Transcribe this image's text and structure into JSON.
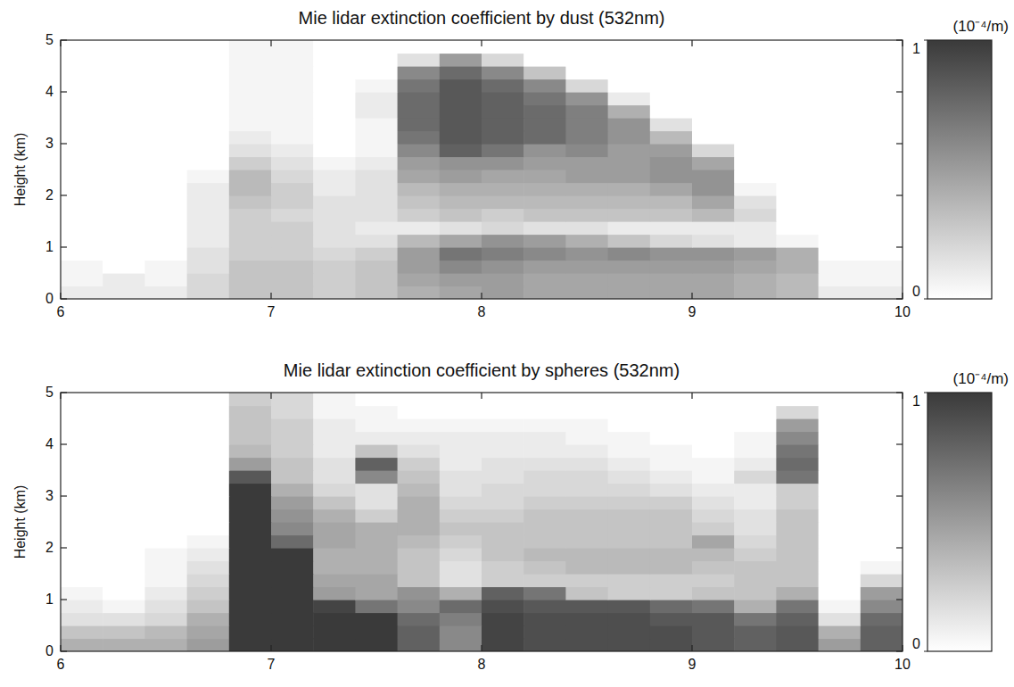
{
  "chart_data": [
    {
      "type": "heatmap",
      "title": "Mie lidar extinction coefficient by dust (532nm)",
      "y_label": "Height (km)",
      "x": [
        6.1,
        6.3,
        6.5,
        6.7,
        6.9,
        7.1,
        7.3,
        7.5,
        7.7,
        7.9,
        8.1,
        8.3,
        8.5,
        8.7,
        8.9,
        9.1,
        9.3,
        9.5,
        9.7,
        9.9
      ],
      "y": [
        0.125,
        0.375,
        0.625,
        0.875,
        1.125,
        1.375,
        1.625,
        1.875,
        2.125,
        2.375,
        2.625,
        2.875,
        3.125,
        3.375,
        3.625,
        3.875,
        4.125,
        4.375,
        4.625,
        4.875
      ],
      "values": [
        [
          0.1,
          0.1,
          0.1,
          0.2,
          0.3,
          0.3,
          0.25,
          0.3,
          0.4,
          0.45,
          0.5,
          0.45,
          0.45,
          0.45,
          0.45,
          0.45,
          0.4,
          0.35,
          0.1,
          0.1
        ],
        [
          0.05,
          0.1,
          0.05,
          0.2,
          0.3,
          0.3,
          0.25,
          0.3,
          0.45,
          0.5,
          0.5,
          0.45,
          0.45,
          0.45,
          0.45,
          0.45,
          0.4,
          0.35,
          0.05,
          0.05
        ],
        [
          0.05,
          0,
          0.05,
          0.15,
          0.3,
          0.3,
          0.25,
          0.3,
          0.5,
          0.6,
          0.55,
          0.5,
          0.5,
          0.5,
          0.5,
          0.5,
          0.45,
          0.4,
          0.05,
          0.05
        ],
        [
          0,
          0,
          0,
          0.15,
          0.25,
          0.25,
          0.2,
          0.25,
          0.5,
          0.7,
          0.65,
          0.6,
          0.55,
          0.6,
          0.55,
          0.55,
          0.5,
          0.4,
          0,
          0
        ],
        [
          0,
          0,
          0,
          0.1,
          0.25,
          0.25,
          0.15,
          0.15,
          0.35,
          0.45,
          0.55,
          0.5,
          0.4,
          0.3,
          0.2,
          0.15,
          0.1,
          0.05,
          0,
          0
        ],
        [
          0,
          0,
          0,
          0.1,
          0.25,
          0.25,
          0.15,
          0.1,
          0.1,
          0.15,
          0.2,
          0.15,
          0.15,
          0.1,
          0.1,
          0.1,
          0.1,
          0,
          0,
          0
        ],
        [
          0,
          0,
          0,
          0.1,
          0.25,
          0.2,
          0.15,
          0.15,
          0.25,
          0.3,
          0.25,
          0.3,
          0.3,
          0.3,
          0.3,
          0.35,
          0.2,
          0,
          0,
          0
        ],
        [
          0,
          0,
          0,
          0.1,
          0.3,
          0.25,
          0.15,
          0.15,
          0.3,
          0.35,
          0.35,
          0.35,
          0.35,
          0.35,
          0.35,
          0.45,
          0.15,
          0,
          0,
          0
        ],
        [
          0,
          0,
          0,
          0.1,
          0.35,
          0.25,
          0.1,
          0.15,
          0.35,
          0.4,
          0.4,
          0.4,
          0.4,
          0.4,
          0.45,
          0.55,
          0.05,
          0,
          0,
          0
        ],
        [
          0,
          0,
          0,
          0.05,
          0.35,
          0.2,
          0.1,
          0.15,
          0.45,
          0.5,
          0.45,
          0.45,
          0.5,
          0.5,
          0.55,
          0.55,
          0,
          0,
          0,
          0
        ],
        [
          0,
          0,
          0,
          0,
          0.25,
          0.15,
          0.05,
          0.1,
          0.5,
          0.55,
          0.55,
          0.5,
          0.5,
          0.5,
          0.55,
          0.45,
          0,
          0,
          0,
          0
        ],
        [
          0,
          0,
          0,
          0,
          0.15,
          0.1,
          0,
          0.05,
          0.6,
          0.8,
          0.7,
          0.55,
          0.6,
          0.5,
          0.5,
          0.2,
          0,
          0,
          0,
          0
        ],
        [
          0,
          0,
          0,
          0,
          0.1,
          0.05,
          0,
          0.05,
          0.7,
          0.85,
          0.8,
          0.75,
          0.65,
          0.55,
          0.35,
          0,
          0,
          0,
          0,
          0
        ],
        [
          0,
          0,
          0,
          0,
          0.05,
          0.05,
          0,
          0.05,
          0.75,
          0.85,
          0.8,
          0.75,
          0.65,
          0.55,
          0.15,
          0,
          0,
          0,
          0,
          0
        ],
        [
          0,
          0,
          0,
          0,
          0.05,
          0.05,
          0,
          0.1,
          0.75,
          0.85,
          0.8,
          0.75,
          0.65,
          0.4,
          0,
          0,
          0,
          0,
          0,
          0
        ],
        [
          0,
          0,
          0,
          0,
          0.05,
          0.05,
          0,
          0.1,
          0.75,
          0.85,
          0.8,
          0.7,
          0.55,
          0.1,
          0,
          0,
          0,
          0,
          0,
          0
        ],
        [
          0,
          0,
          0,
          0,
          0.05,
          0.05,
          0,
          0.05,
          0.7,
          0.85,
          0.75,
          0.6,
          0.2,
          0,
          0,
          0,
          0,
          0,
          0,
          0
        ],
        [
          0,
          0,
          0,
          0,
          0.05,
          0.05,
          0,
          0,
          0.6,
          0.75,
          0.6,
          0.3,
          0,
          0,
          0,
          0,
          0,
          0,
          0,
          0
        ],
        [
          0,
          0,
          0,
          0,
          0.05,
          0.05,
          0,
          0,
          0.15,
          0.5,
          0.2,
          0,
          0,
          0,
          0,
          0,
          0,
          0,
          0,
          0
        ],
        [
          0,
          0,
          0,
          0,
          0.05,
          0.05,
          0,
          0,
          0,
          0,
          0,
          0,
          0,
          0,
          0,
          0,
          0,
          0,
          0,
          0
        ]
      ],
      "xlim": [
        6,
        10
      ],
      "xticks": [
        6,
        7,
        8,
        9,
        10
      ],
      "ylim": [
        0,
        5
      ],
      "yticks": [
        0,
        1,
        2,
        3,
        4,
        5
      ],
      "colors": [
        "#ffffff",
        "#3a3a3a"
      ],
      "color_range": [
        0,
        1
      ],
      "color_ticks": [
        0,
        1
      ],
      "color_label": "(10⁻⁴/m)"
    },
    {
      "type": "heatmap",
      "title": "Mie lidar extinction coefficient by spheres (532nm)",
      "y_label": "Height (km)",
      "x": [
        6.1,
        6.3,
        6.5,
        6.7,
        6.9,
        7.1,
        7.3,
        7.5,
        7.7,
        7.9,
        8.1,
        8.3,
        8.5,
        8.7,
        8.9,
        9.1,
        9.3,
        9.5,
        9.7,
        9.9
      ],
      "y": [
        0.125,
        0.375,
        0.625,
        0.875,
        1.125,
        1.375,
        1.625,
        1.875,
        2.125,
        2.375,
        2.625,
        2.875,
        3.125,
        3.375,
        3.625,
        3.875,
        4.125,
        4.375,
        4.625,
        4.875
      ],
      "values": [
        [
          0.4,
          0.4,
          0.4,
          0.5,
          1,
          1,
          1,
          1,
          0.8,
          0.6,
          0.95,
          0.9,
          0.9,
          0.9,
          0.9,
          0.85,
          0.8,
          0.85,
          0.5,
          0.8
        ],
        [
          0.3,
          0.3,
          0.35,
          0.45,
          1,
          1,
          1,
          1,
          0.8,
          0.6,
          0.95,
          0.9,
          0.9,
          0.9,
          0.9,
          0.85,
          0.8,
          0.85,
          0.4,
          0.8
        ],
        [
          0.15,
          0.15,
          0.2,
          0.4,
          1,
          1,
          1,
          1,
          0.75,
          0.65,
          0.95,
          0.9,
          0.9,
          0.9,
          0.85,
          0.85,
          0.7,
          0.8,
          0.15,
          0.75
        ],
        [
          0.1,
          0.05,
          0.15,
          0.3,
          1,
          1,
          0.95,
          0.7,
          0.6,
          0.75,
          0.9,
          0.85,
          0.85,
          0.85,
          0.75,
          0.7,
          0.4,
          0.7,
          0.05,
          0.6
        ],
        [
          0.05,
          0,
          0.1,
          0.25,
          1,
          1,
          0.5,
          0.45,
          0.55,
          0.4,
          0.8,
          0.7,
          0.3,
          0.25,
          0.25,
          0.3,
          0.3,
          0.4,
          0,
          0.5
        ],
        [
          0,
          0,
          0.05,
          0.2,
          1,
          1,
          0.45,
          0.45,
          0.3,
          0.15,
          0.25,
          0.25,
          0.25,
          0.25,
          0.25,
          0.25,
          0.3,
          0.3,
          0,
          0.2
        ],
        [
          0,
          0,
          0.05,
          0.15,
          1,
          1,
          0.4,
          0.4,
          0.3,
          0.15,
          0.25,
          0.3,
          0.35,
          0.35,
          0.35,
          0.3,
          0.3,
          0.3,
          0,
          0.05
        ],
        [
          0,
          0,
          0.05,
          0.1,
          1,
          1,
          0.4,
          0.4,
          0.3,
          0.2,
          0.3,
          0.35,
          0.35,
          0.35,
          0.35,
          0.35,
          0.25,
          0.3,
          0,
          0
        ],
        [
          0,
          0,
          0,
          0.05,
          1,
          0.75,
          0.45,
          0.4,
          0.35,
          0.25,
          0.3,
          0.3,
          0.3,
          0.3,
          0.3,
          0.45,
          0.2,
          0.3,
          0,
          0
        ],
        [
          0,
          0,
          0,
          0,
          1,
          0.6,
          0.45,
          0.4,
          0.4,
          0.3,
          0.3,
          0.3,
          0.3,
          0.3,
          0.3,
          0.25,
          0.15,
          0.3,
          0,
          0
        ],
        [
          0,
          0,
          0,
          0,
          1,
          0.55,
          0.4,
          0.25,
          0.4,
          0.25,
          0.25,
          0.3,
          0.3,
          0.3,
          0.3,
          0.2,
          0.15,
          0.3,
          0,
          0
        ],
        [
          0,
          0,
          0,
          0,
          1,
          0.5,
          0.3,
          0.15,
          0.4,
          0.2,
          0.2,
          0.25,
          0.25,
          0.25,
          0.25,
          0.15,
          0.1,
          0.25,
          0,
          0
        ],
        [
          0,
          0,
          0,
          0,
          1,
          0.4,
          0.2,
          0.15,
          0.35,
          0.15,
          0.2,
          0.2,
          0.2,
          0.2,
          0.15,
          0.1,
          0.1,
          0.25,
          0,
          0
        ],
        [
          0,
          0,
          0,
          0,
          0.85,
          0.3,
          0.15,
          0.6,
          0.3,
          0.15,
          0.15,
          0.2,
          0.2,
          0.15,
          0.1,
          0.05,
          0.2,
          0.7,
          0,
          0
        ],
        [
          0,
          0,
          0,
          0,
          0.5,
          0.3,
          0.15,
          0.8,
          0.25,
          0.1,
          0.15,
          0.15,
          0.15,
          0.1,
          0.05,
          0.05,
          0.1,
          0.75,
          0,
          0
        ],
        [
          0,
          0,
          0,
          0,
          0.35,
          0.25,
          0.1,
          0.3,
          0.15,
          0.1,
          0.1,
          0.1,
          0.1,
          0.05,
          0.05,
          0,
          0.05,
          0.7,
          0,
          0
        ],
        [
          0,
          0,
          0,
          0,
          0.3,
          0.25,
          0.1,
          0.1,
          0.1,
          0.1,
          0.1,
          0.1,
          0.05,
          0.05,
          0,
          0,
          0.05,
          0.6,
          0,
          0
        ],
        [
          0,
          0,
          0,
          0,
          0.3,
          0.25,
          0.1,
          0.05,
          0.05,
          0.05,
          0.05,
          0.05,
          0.05,
          0,
          0,
          0,
          0,
          0.5,
          0,
          0
        ],
        [
          0,
          0,
          0,
          0,
          0.3,
          0.2,
          0.05,
          0.05,
          0,
          0,
          0,
          0,
          0,
          0,
          0,
          0,
          0,
          0.2,
          0,
          0
        ],
        [
          0,
          0,
          0,
          0,
          0.25,
          0.2,
          0.05,
          0,
          0,
          0,
          0,
          0,
          0,
          0,
          0,
          0,
          0,
          0,
          0,
          0
        ]
      ],
      "xlim": [
        6,
        10
      ],
      "xticks": [
        6,
        7,
        8,
        9,
        10
      ],
      "ylim": [
        0,
        5
      ],
      "yticks": [
        0,
        1,
        2,
        3,
        4,
        5
      ],
      "colors": [
        "#ffffff",
        "#3a3a3a"
      ],
      "color_range": [
        0,
        1
      ],
      "color_ticks": [
        0,
        1
      ],
      "color_label": "(10⁻⁴/m)"
    }
  ]
}
